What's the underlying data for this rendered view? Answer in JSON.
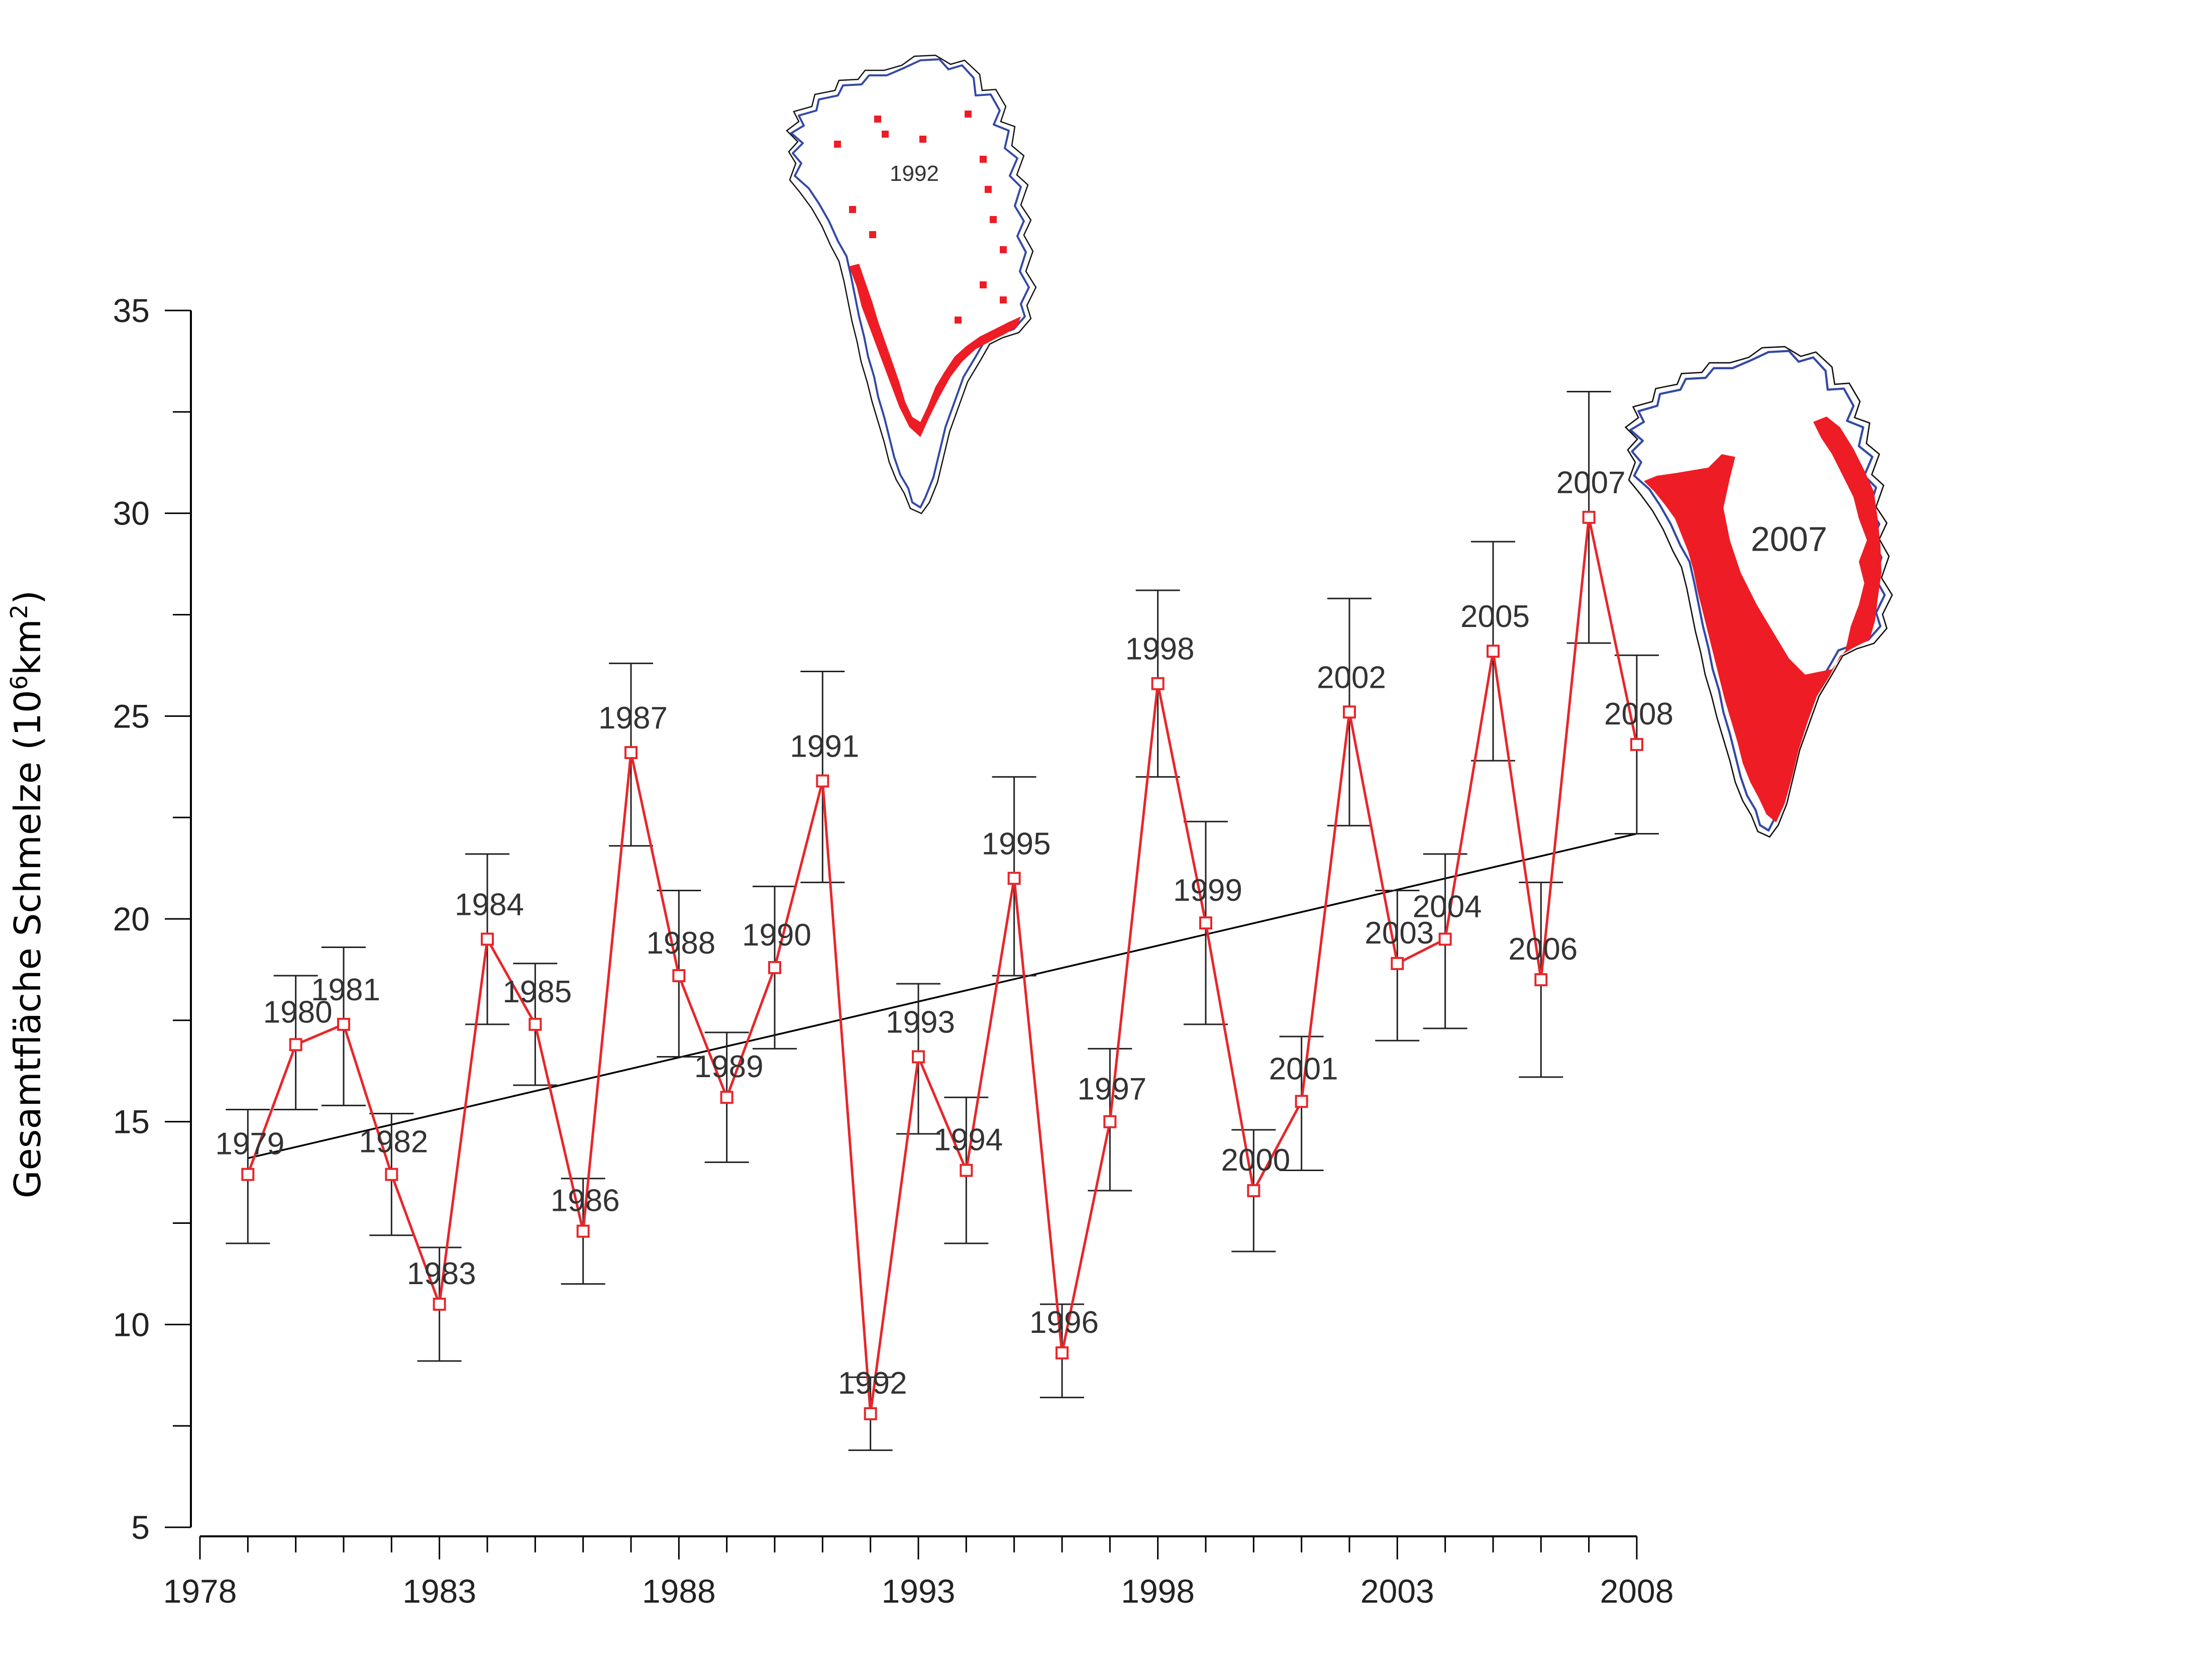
{
  "chart_data": {
    "type": "line",
    "title": "",
    "xlabel": "",
    "ylabel": "Gesamtfläche Schmelze (10",
    "ylabel_exp1": "6",
    "ylabel_unit": "km",
    "ylabel_exp2": "2",
    "ylabel_close": ")",
    "xlim": [
      1978,
      2008
    ],
    "ylim": [
      5,
      35
    ],
    "x_ticks": [
      "1978",
      "1983",
      "1988",
      "1993",
      "1998",
      "2003",
      "2008"
    ],
    "y_ticks": [
      "5",
      "10",
      "15",
      "20",
      "25",
      "30",
      "35"
    ],
    "grid": false,
    "legend": "none",
    "series": [
      {
        "color": "#e8262b",
        "x": [
          1979,
          1980,
          1981,
          1982,
          1983,
          1984,
          1985,
          1986,
          1987,
          1988,
          1989,
          1990,
          1991,
          1992,
          1993,
          1994,
          1995,
          1996,
          1997,
          1998,
          1999,
          2000,
          2001,
          2002,
          2003,
          2004,
          2005,
          2006,
          2007,
          2008
        ],
        "labels": [
          "1979",
          "1980",
          "1981",
          "1982",
          "1983",
          "1984",
          "1985",
          "1986",
          "1987",
          "1988",
          "1989",
          "1990",
          "1991",
          "1992",
          "1993",
          "1994",
          "1995",
          "1996",
          "1997",
          "1998",
          "1999",
          "2000",
          "2001",
          "2002",
          "2003",
          "2004",
          "2005",
          "2006",
          "2007",
          "2008"
        ],
        "y": [
          13.7,
          16.9,
          17.4,
          13.7,
          10.5,
          19.5,
          17.4,
          12.3,
          24.1,
          18.6,
          15.6,
          18.8,
          23.4,
          7.8,
          16.6,
          13.8,
          21.0,
          9.3,
          15.0,
          25.8,
          19.9,
          13.3,
          15.5,
          25.1,
          18.9,
          19.5,
          26.6,
          18.5,
          29.9,
          24.3
        ],
        "err_low": [
          12.0,
          15.3,
          15.4,
          12.2,
          9.1,
          17.4,
          15.9,
          11.0,
          21.8,
          16.6,
          14.0,
          16.8,
          20.9,
          6.9,
          14.7,
          12.0,
          18.6,
          8.2,
          13.3,
          23.5,
          17.4,
          11.8,
          13.8,
          22.3,
          17.0,
          17.3,
          23.9,
          16.1,
          26.8,
          22.1
        ],
        "err_high": [
          15.3,
          18.6,
          19.3,
          15.2,
          11.9,
          21.6,
          18.9,
          13.6,
          26.3,
          20.7,
          17.2,
          20.8,
          26.1,
          8.7,
          18.4,
          15.6,
          23.5,
          10.5,
          16.8,
          28.1,
          22.4,
          14.8,
          17.1,
          27.9,
          20.7,
          21.6,
          29.3,
          20.9,
          33.0,
          26.5
        ]
      }
    ],
    "trend": {
      "color": "#000000",
      "x": [
        1979,
        2008
      ],
      "y": [
        14.1,
        22.1
      ]
    },
    "insets": [
      {
        "label": "1992",
        "melt_color": "#ee1c25",
        "coast_color": "#3349a6"
      },
      {
        "label": "2007",
        "melt_color": "#ee1c25",
        "coast_color": "#3349a6"
      }
    ]
  }
}
